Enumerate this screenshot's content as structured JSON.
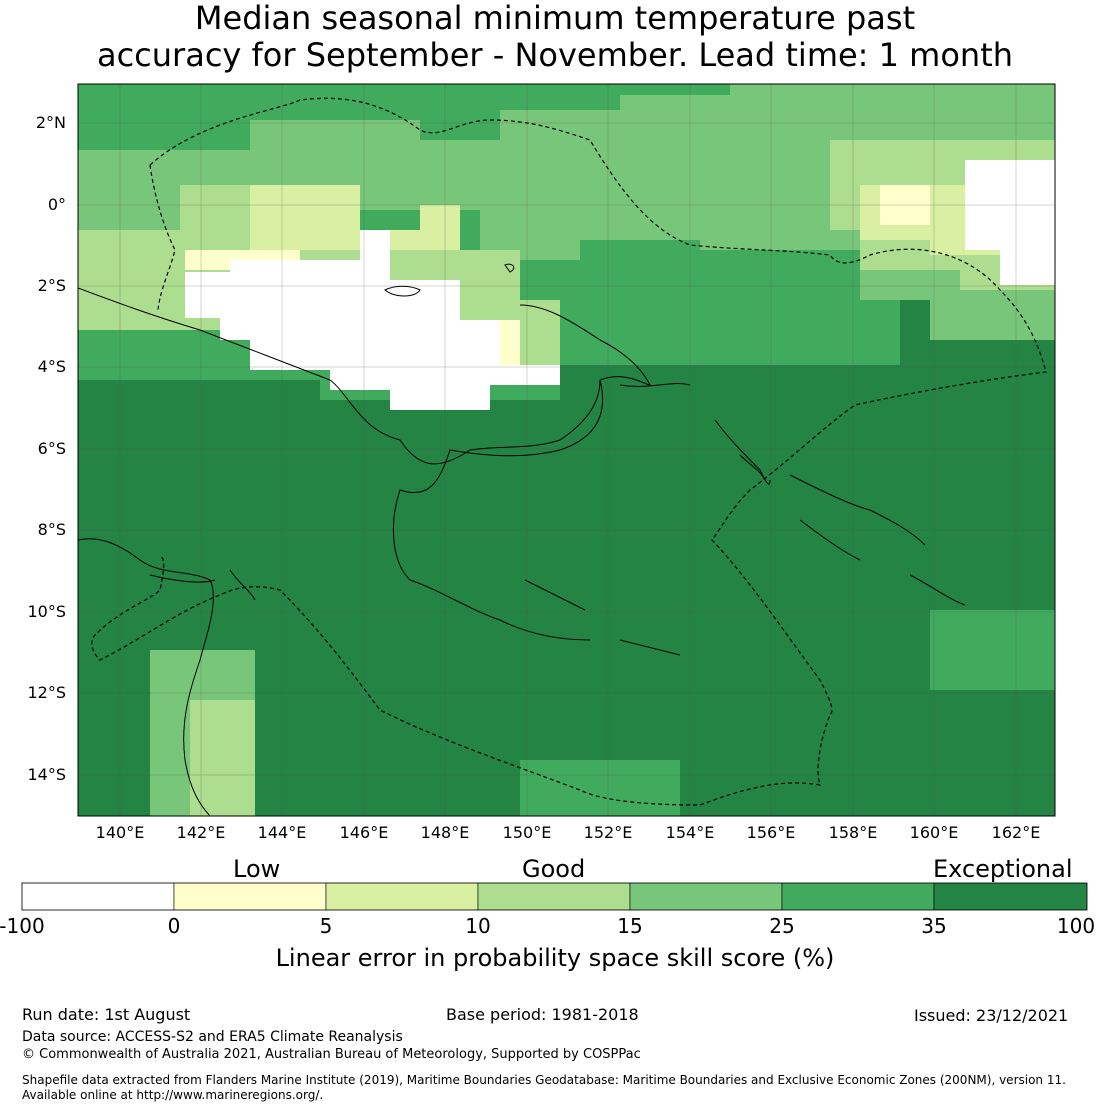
{
  "title_line1": "Median seasonal minimum temperature past",
  "title_line2": "accuracy for September - November. Lead time: 1 month",
  "lat_labels": [
    "2°N",
    "0°",
    "2°S",
    "4°S",
    "6°S",
    "8°S",
    "10°S",
    "12°S",
    "14°S"
  ],
  "lon_labels": [
    "140°E",
    "142°E",
    "144°E",
    "146°E",
    "148°E",
    "150°E",
    "152°E",
    "154°E",
    "156°E",
    "158°E",
    "160°E",
    "162°E"
  ],
  "colorbar": {
    "category_labels": [
      "Low",
      "Good",
      "Exceptional"
    ],
    "tick_labels": [
      "-100",
      "0",
      "5",
      "10",
      "15",
      "25",
      "35",
      "100"
    ],
    "title": "Linear error in probability space skill score (%)",
    "colors": [
      "#ffffff",
      "#ffffcc",
      "#d9f0a3",
      "#addd8e",
      "#78c679",
      "#41ab5d",
      "#238443"
    ]
  },
  "footer": {
    "run_date": "Run date: 1st August",
    "base_period": "Base period: 1981-2018",
    "issued": "Issued: 23/12/2021",
    "data_source": "Data source: ACCESS-S2 and ERA5 Climate Reanalysis",
    "copyright": "© Commonwealth of Australia 2021, Australian Bureau of Meteorology, Supported by COSPPac",
    "shapefile_line1": "Shapefile data extracted from Flanders Marine Institute (2019), Maritime Boundaries Geodatabase: Maritime Boundaries and Exclusive Economic Zones (200NM), version 11.",
    "shapefile_line2": "Available online at http://www.marineregions.org/."
  }
}
